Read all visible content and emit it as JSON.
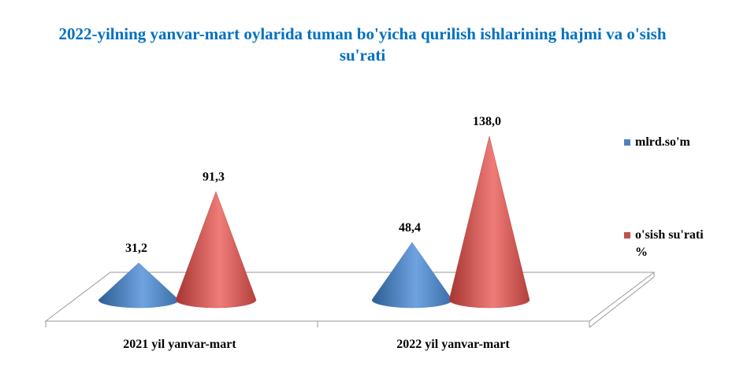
{
  "chart_data": {
    "type": "cone",
    "title": "2022-yilning yanvar-mart oylarida tuman bo'yicha qurilish ishlarining hajmi va o'sish su'rati",
    "categories": [
      "2021 yil yanvar-mart",
      "2022 yil yanvar-mart"
    ],
    "series": [
      {
        "name": "mlrd.so'm",
        "color": "#4f81bd",
        "values": [
          31.2,
          48.4
        ],
        "value_labels": [
          "31,2",
          "48,4"
        ]
      },
      {
        "name": "o'sish su'rati %",
        "color": "#c0504d",
        "values": [
          91.3,
          138.0
        ],
        "value_labels": [
          "91,3",
          "138,0"
        ]
      }
    ],
    "legend": "right"
  }
}
